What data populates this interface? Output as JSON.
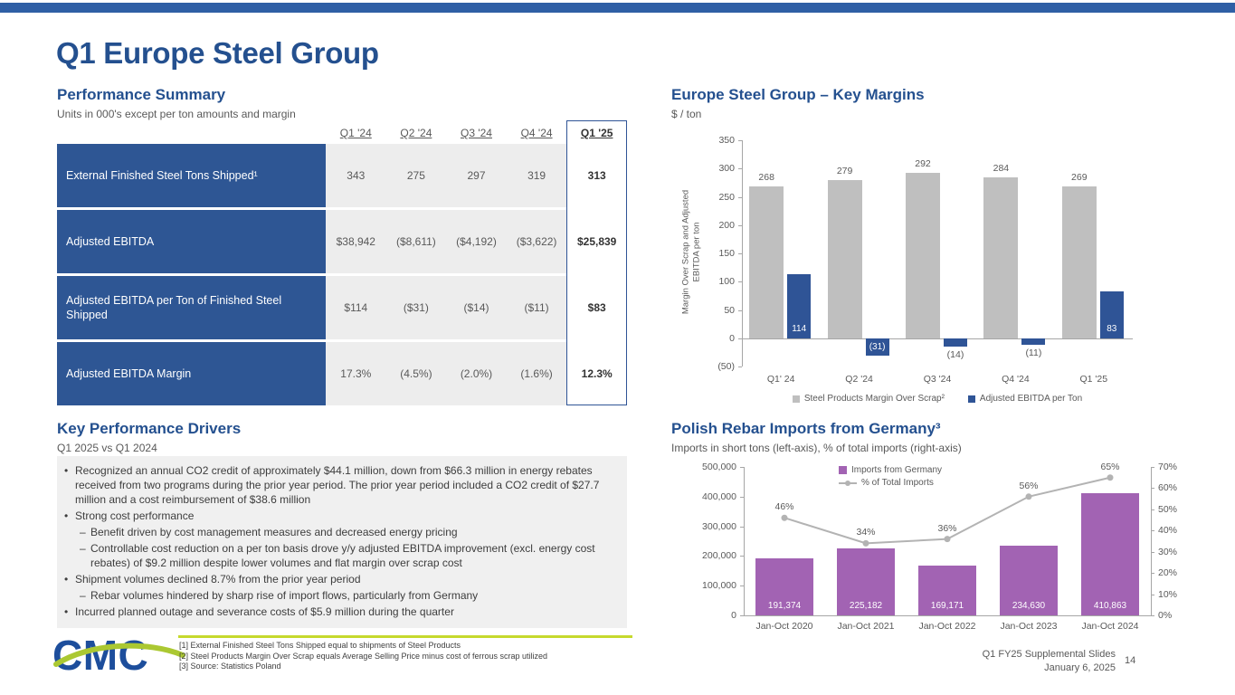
{
  "slide": {
    "title": "Q1 Europe Steel Group"
  },
  "colors": {
    "accent_blue": "#24508f",
    "table_row_blue": "#2e5694",
    "ebitda_bar_blue": "#2f5496",
    "margin_bar_gray": "#bfbfbf",
    "imports_bar_purple": "#a263b3",
    "line_gray": "#b3b3b3",
    "rule_lime": "#c6d92d",
    "topbar_blue": "#2f5fa5"
  },
  "performance_summary": {
    "heading": "Performance Summary",
    "subheading": "Units in 000's except per ton amounts and margin",
    "columns": [
      "Q1 '24",
      "Q2 '24",
      "Q3 '24",
      "Q4 '24",
      "Q1 '25"
    ],
    "rows": [
      {
        "label": "External Finished Steel Tons Shipped¹",
        "values": [
          "343",
          "275",
          "297",
          "319",
          "313"
        ]
      },
      {
        "label": "Adjusted EBITDA",
        "values": [
          "$38,942",
          "($8,611)",
          "($4,192)",
          "($3,622)",
          "$25,839"
        ]
      },
      {
        "label": "Adjusted EBITDA per Ton of Finished Steel Shipped",
        "values": [
          "$114",
          "($31)",
          "($14)",
          "($11)",
          "$83"
        ]
      },
      {
        "label": "Adjusted EBITDA Margin",
        "values": [
          "17.3%",
          "(4.5%)",
          "(2.0%)",
          "(1.6%)",
          "12.3%"
        ]
      }
    ]
  },
  "key_drivers": {
    "heading": "Key Performance Drivers",
    "subheading": "Q1 2025 vs Q1 2024",
    "bullets": [
      {
        "level": 1,
        "text": "Recognized an annual CO2 credit of approximately $44.1 million, down from $66.3 million in energy rebates received from two programs during the prior year period.  The prior year period included a CO2 credit of $27.7 million and a cost reimbursement of $38.6 million"
      },
      {
        "level": 1,
        "text": "Strong cost performance"
      },
      {
        "level": 2,
        "text": "Benefit driven by cost management measures and decreased energy pricing"
      },
      {
        "level": 2,
        "text": "Controllable cost reduction on a per ton basis drove y/y adjusted EBITDA improvement (excl. energy cost rebates) of $9.2 million despite lower volumes and flat margin over scrap cost"
      },
      {
        "level": 1,
        "text": "Shipment volumes declined 8.7% from the prior year period"
      },
      {
        "level": 2,
        "text": "Rebar volumes hindered by sharp rise of import flows, particularly from Germany"
      },
      {
        "level": 1,
        "text": "Incurred planned outage and severance costs of $5.9 million during the quarter"
      }
    ]
  },
  "chart_data": [
    {
      "id": "key-margins",
      "type": "bar",
      "title": "Europe Steel Group – Key Margins",
      "subtitle": "$ / ton",
      "ylabel_lines": [
        "Margin Over Scrap and Adjusted",
        "EBITDA per ton"
      ],
      "categories": [
        "Q1' 24",
        "Q2 '24",
        "Q3 '24",
        "Q4 '24",
        "Q1 '25"
      ],
      "series": [
        {
          "name": "Steel Products Margin Over Scrap²",
          "color": "#bfbfbf",
          "values": [
            268,
            279,
            292,
            284,
            269
          ],
          "labels": [
            "268",
            "279",
            "292",
            "284",
            "269"
          ]
        },
        {
          "name": "Adjusted EBITDA per Ton",
          "color": "#2f5496",
          "values": [
            114,
            -31,
            -14,
            -11,
            83
          ],
          "labels": [
            "114",
            "(31)",
            "(14)",
            "(11)",
            "83"
          ]
        }
      ],
      "ylim": [
        -50,
        350
      ],
      "yticks": [
        "350",
        "300",
        "250",
        "200",
        "150",
        "100",
        "50",
        "0",
        "(50)"
      ],
      "ytick_values": [
        350,
        300,
        250,
        200,
        150,
        100,
        50,
        0,
        -50
      ],
      "legend_position": "bottom",
      "grid": false
    },
    {
      "id": "polish-rebar-imports",
      "type": "bar+line",
      "title": "Polish Rebar Imports from Germany³",
      "subtitle": "Imports in short tons (left-axis), % of total imports (right-axis)",
      "categories": [
        "Jan-Oct 2020",
        "Jan-Oct 2021",
        "Jan-Oct 2022",
        "Jan-Oct 2023",
        "Jan-Oct 2024"
      ],
      "bar_series": {
        "name": "Imports from Germany",
        "color": "#a263b3",
        "values": [
          191374,
          225182,
          169171,
          234630,
          410863
        ],
        "labels": [
          "191,374",
          "225,182",
          "169,171",
          "234,630",
          "410,863"
        ]
      },
      "line_series": {
        "name": "% of Total Imports",
        "color": "#b3b3b3",
        "values": [
          46,
          34,
          36,
          56,
          65
        ],
        "labels": [
          "46%",
          "34%",
          "36%",
          "56%",
          "65%"
        ]
      },
      "left_ylim": [
        0,
        500000
      ],
      "left_yticks": [
        "500,000",
        "400,000",
        "300,000",
        "200,000",
        "100,000",
        "0"
      ],
      "left_ytick_values": [
        500000,
        400000,
        300000,
        200000,
        100000,
        0
      ],
      "right_ylim": [
        0,
        70
      ],
      "right_yticks": [
        "70%",
        "60%",
        "50%",
        "40%",
        "30%",
        "20%",
        "10%",
        "0%"
      ],
      "right_ytick_values": [
        70,
        60,
        50,
        40,
        30,
        20,
        10,
        0
      ],
      "legend_position": "top",
      "grid": false
    }
  ],
  "footer": {
    "logo_text": "CMC",
    "footnotes": [
      "[1]  External Finished Steel Tons Shipped equal to shipments of Steel Products",
      "[2]  Steel Products Margin Over Scrap equals Average Selling Price minus cost of ferrous scrap utilized",
      "[3]  Source: Statistics Poland"
    ],
    "deck_title": "Q1 FY25 Supplemental Slides",
    "date": "January 6, 2025",
    "page_number": "14"
  }
}
